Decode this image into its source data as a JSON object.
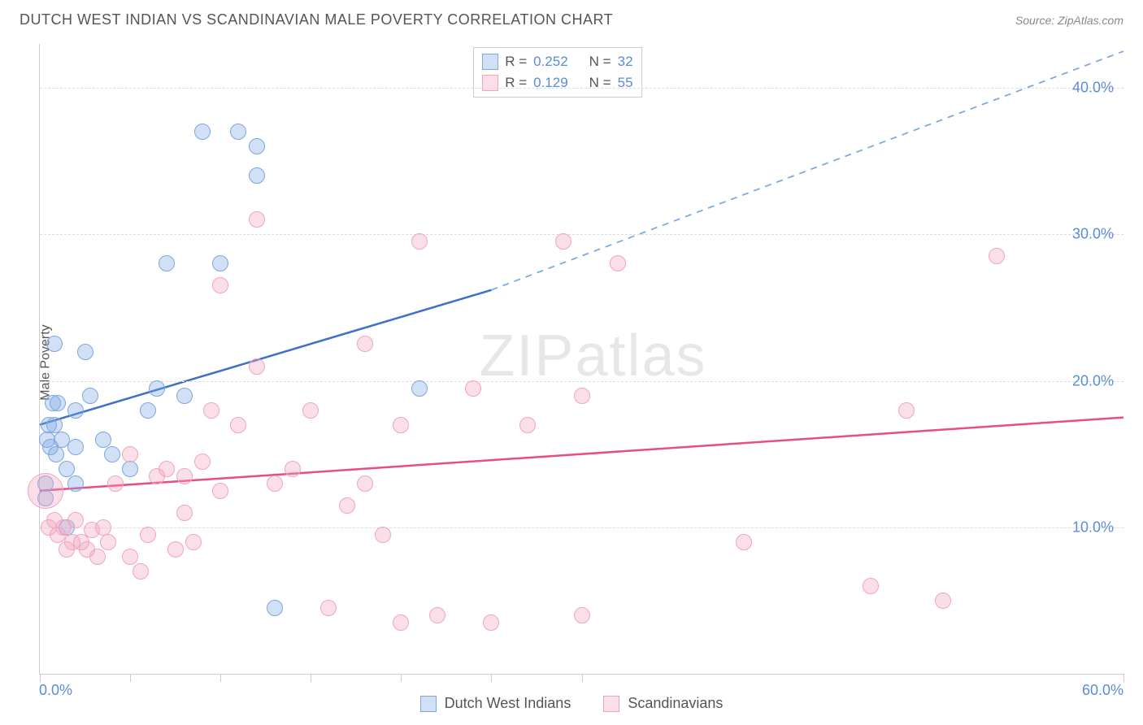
{
  "title": "DUTCH WEST INDIAN VS SCANDINAVIAN MALE POVERTY CORRELATION CHART",
  "source": "Source: ZipAtlas.com",
  "ylabel": "Male Poverty",
  "watermark_a": "ZIP",
  "watermark_b": "atlas",
  "chart": {
    "type": "scatter",
    "xlim": [
      0,
      60
    ],
    "ylim": [
      0,
      43
    ],
    "background_color": "#ffffff",
    "grid_color": "#dddddd",
    "axis_color": "#cccccc",
    "y_gridlines": [
      10,
      20,
      30,
      40
    ],
    "y_tick_labels": [
      "10.0%",
      "20.0%",
      "30.0%",
      "40.0%"
    ],
    "x_ticks": [
      0,
      5,
      10,
      15,
      20,
      25,
      30,
      60
    ],
    "x_tick_labels_left": "0.0%",
    "x_tick_labels_right": "60.0%",
    "tick_label_color": "#5b8cd6",
    "tick_label_fontsize": 18,
    "series": [
      {
        "name": "Dutch West Indians",
        "r_label": "R =",
        "r_value": "0.252",
        "n_label": "N =",
        "n_value": "32",
        "marker_fill": "rgba(123,167,227,0.35)",
        "marker_stroke": "#7ba7e3",
        "marker_radius": 10,
        "line_color": "#3e6fc9",
        "line_width": 2.5,
        "dash_color": "#7ba7e3",
        "trend": {
          "x1": 0,
          "y1": 17,
          "x2_solid": 25,
          "y2_solid": 26.2,
          "x2": 60,
          "y2": 42.5
        },
        "points": [
          [
            0.3,
            12
          ],
          [
            0.3,
            13
          ],
          [
            0.4,
            16
          ],
          [
            0.5,
            17
          ],
          [
            0.6,
            15.5
          ],
          [
            0.7,
            18.5
          ],
          [
            0.8,
            17
          ],
          [
            0.9,
            15
          ],
          [
            0.8,
            22.5
          ],
          [
            1.0,
            18.5
          ],
          [
            1.2,
            16
          ],
          [
            1.5,
            10
          ],
          [
            1.5,
            14
          ],
          [
            2,
            13
          ],
          [
            2,
            18
          ],
          [
            2,
            15.5
          ],
          [
            2.5,
            22
          ],
          [
            2.8,
            19
          ],
          [
            3.5,
            16
          ],
          [
            4,
            15
          ],
          [
            5,
            14
          ],
          [
            6,
            18
          ],
          [
            6.5,
            19.5
          ],
          [
            7,
            28
          ],
          [
            8,
            19
          ],
          [
            9,
            37
          ],
          [
            10,
            28
          ],
          [
            11,
            37
          ],
          [
            12,
            36
          ],
          [
            12,
            34
          ],
          [
            13,
            4.5
          ],
          [
            21,
            19.5
          ]
        ]
      },
      {
        "name": "Scandinavians",
        "r_label": "R =",
        "r_value": "0.129",
        "n_label": "N =",
        "n_value": "55",
        "marker_fill": "rgba(241,164,189,0.35)",
        "marker_stroke": "#f1a4bd",
        "marker_radius": 10,
        "line_color": "#e64e84",
        "line_width": 2.5,
        "trend": {
          "x1": 0,
          "y1": 12.5,
          "x2_solid": 60,
          "y2_solid": 17.5,
          "x2": 60,
          "y2": 17.5
        },
        "big_point": {
          "x": 0.3,
          "y": 12.5,
          "r": 22
        },
        "points": [
          [
            0.5,
            10
          ],
          [
            0.8,
            10.5
          ],
          [
            1,
            9.5
          ],
          [
            1.3,
            10
          ],
          [
            1.5,
            8.5
          ],
          [
            1.8,
            9
          ],
          [
            2,
            10.5
          ],
          [
            2.3,
            9
          ],
          [
            2.6,
            8.5
          ],
          [
            2.9,
            9.8
          ],
          [
            3.2,
            8
          ],
          [
            3.5,
            10
          ],
          [
            3.8,
            9
          ],
          [
            4.2,
            13
          ],
          [
            5,
            8
          ],
          [
            5,
            15
          ],
          [
            5.6,
            7
          ],
          [
            6,
            9.5
          ],
          [
            6.5,
            13.5
          ],
          [
            7,
            14
          ],
          [
            7.5,
            8.5
          ],
          [
            8,
            13.5
          ],
          [
            8,
            11
          ],
          [
            8.5,
            9
          ],
          [
            9,
            14.5
          ],
          [
            9.5,
            18
          ],
          [
            10,
            12.5
          ],
          [
            10,
            26.5
          ],
          [
            11,
            17
          ],
          [
            12,
            21
          ],
          [
            12,
            31
          ],
          [
            13,
            13
          ],
          [
            14,
            14
          ],
          [
            15,
            18
          ],
          [
            16,
            4.5
          ],
          [
            17,
            11.5
          ],
          [
            18,
            13
          ],
          [
            18,
            22.5
          ],
          [
            19,
            9.5
          ],
          [
            20,
            3.5
          ],
          [
            20,
            17
          ],
          [
            21,
            29.5
          ],
          [
            22,
            4
          ],
          [
            24,
            19.5
          ],
          [
            25,
            3.5
          ],
          [
            27,
            17
          ],
          [
            29,
            29.5
          ],
          [
            30,
            19
          ],
          [
            30,
            4
          ],
          [
            32,
            28
          ],
          [
            39,
            9
          ],
          [
            46,
            6
          ],
          [
            48,
            18
          ],
          [
            50,
            5
          ],
          [
            53,
            28.5
          ]
        ]
      }
    ]
  },
  "legend_series_1": "Dutch West Indians",
  "legend_series_2": "Scandinavians"
}
